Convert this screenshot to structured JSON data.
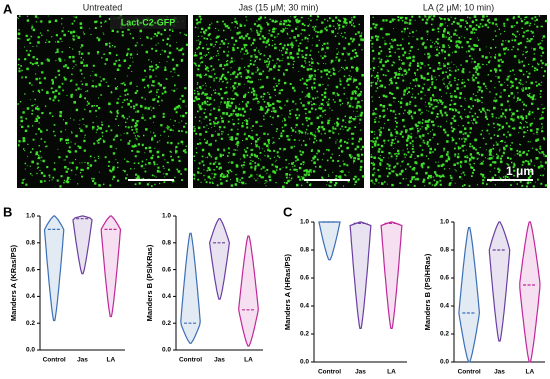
{
  "panel_labels": [
    "A",
    "B",
    "C"
  ],
  "images": [
    {
      "title": "Untreated"
    },
    {
      "title": "Jas (15 μM; 30 min)"
    },
    {
      "title": "LA (2 μM; 10 min)"
    }
  ],
  "stain": "Lact-C2-GFP",
  "scale": "1 μm",
  "chart_data": [
    {
      "type": "violin",
      "y_label": "Manders A (KRas/PS)",
      "ylim": [
        0,
        1
      ],
      "yticks": [
        {
          "value": 0,
          "label": "0.0"
        },
        {
          "value": 0.2,
          "label": "0.2"
        },
        {
          "value": 0.4,
          "label": "0.4"
        },
        {
          "value": 0.6,
          "label": "0.6"
        },
        {
          "value": 0.8,
          "label": "0.8"
        },
        {
          "value": 1,
          "label": "1.0"
        }
      ],
      "series": [
        {
          "name": "Control",
          "color": "#3b6fb6",
          "min": 0.22,
          "median": 0.9,
          "max": 1.0
        },
        {
          "name": "Jas",
          "color": "#6a3fa0",
          "min": 0.57,
          "median": 0.98,
          "max": 1.0
        },
        {
          "name": "LA",
          "color": "#c0289a",
          "min": 0.25,
          "median": 0.9,
          "max": 1.0
        }
      ]
    },
    {
      "type": "violin",
      "y_label": "Manders B (PS/KRas)",
      "ylim": [
        0,
        1
      ],
      "yticks": [
        {
          "value": 0,
          "label": "0.0"
        },
        {
          "value": 0.2,
          "label": "0.2"
        },
        {
          "value": 0.4,
          "label": "0.4"
        },
        {
          "value": 0.6,
          "label": "0.6"
        },
        {
          "value": 0.8,
          "label": "0.8"
        },
        {
          "value": 1,
          "label": "1.0"
        }
      ],
      "series": [
        {
          "name": "Control",
          "color": "#3b6fb6",
          "min": 0.05,
          "median": 0.2,
          "max": 0.87
        },
        {
          "name": "Jas",
          "color": "#6a3fa0",
          "min": 0.38,
          "median": 0.8,
          "max": 0.98
        },
        {
          "name": "LA",
          "color": "#c0289a",
          "min": 0.03,
          "median": 0.3,
          "max": 0.85
        }
      ]
    },
    {
      "type": "violin",
      "y_label": "Manders A (HRas/PS)",
      "ylim": [
        0,
        1
      ],
      "yticks": [
        {
          "value": 0,
          "label": "0.0"
        },
        {
          "value": 0.2,
          "label": "0.2"
        },
        {
          "value": 0.4,
          "label": "0.4"
        },
        {
          "value": 0.6,
          "label": "0.6"
        },
        {
          "value": 0.8,
          "label": "0.8"
        },
        {
          "value": 1,
          "label": "1.0"
        }
      ],
      "series": [
        {
          "name": "Control",
          "color": "#3b6fb6",
          "min": 0.73,
          "median": 1.0,
          "max": 1.0
        },
        {
          "name": "Jas",
          "color": "#6a3fa0",
          "min": 0.24,
          "median": 0.99,
          "max": 1.0
        },
        {
          "name": "LA",
          "color": "#c0289a",
          "min": 0.24,
          "median": 0.99,
          "max": 1.0
        }
      ]
    },
    {
      "type": "violin",
      "y_label": "Manders B (PS/HRas)",
      "ylim": [
        0,
        1
      ],
      "yticks": [
        {
          "value": 0,
          "label": "0.0"
        },
        {
          "value": 0.2,
          "label": "0.2"
        },
        {
          "value": 0.4,
          "label": "0.4"
        },
        {
          "value": 0.6,
          "label": "0.6"
        },
        {
          "value": 0.8,
          "label": "0.8"
        },
        {
          "value": 1,
          "label": "1.0"
        }
      ],
      "series": [
        {
          "name": "Control",
          "color": "#3b6fb6",
          "min": 0.0,
          "median": 0.35,
          "max": 0.96
        },
        {
          "name": "Jas",
          "color": "#6a3fa0",
          "min": 0.15,
          "median": 0.8,
          "max": 1.0
        },
        {
          "name": "LA",
          "color": "#c0289a",
          "min": 0.0,
          "median": 0.55,
          "max": 1.0
        }
      ]
    }
  ]
}
